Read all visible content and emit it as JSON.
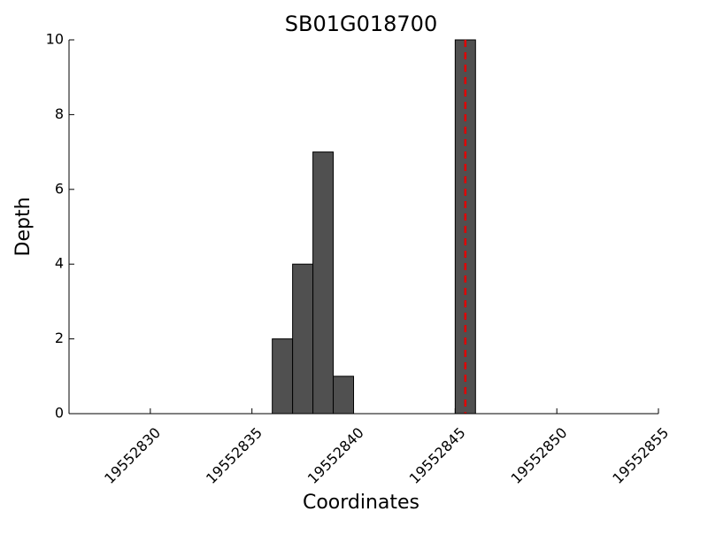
{
  "chart_data": {
    "type": "histogram",
    "title": "SB01G018700",
    "x_label": "Coordinates",
    "y_label": "Depth",
    "bins": [
      19552836,
      19552837,
      19552838,
      19552839,
      19552840,
      19552841,
      19552842,
      19552843,
      19552844,
      19552845,
      19552846
    ],
    "values": [
      2,
      4,
      7,
      1,
      0,
      0,
      0,
      0,
      0,
      10
    ],
    "color": "#505050",
    "xlim": [
      19552826,
      19552855
    ],
    "xticks": [
      19552830,
      19552835,
      19552840,
      19552845,
      19552850,
      19552855
    ],
    "ylim": [
      0,
      10
    ],
    "yticks": [
      0,
      2,
      4,
      6,
      8,
      10
    ],
    "vline": 19552845.5,
    "vline_color": "#e00000",
    "grid": false
  }
}
